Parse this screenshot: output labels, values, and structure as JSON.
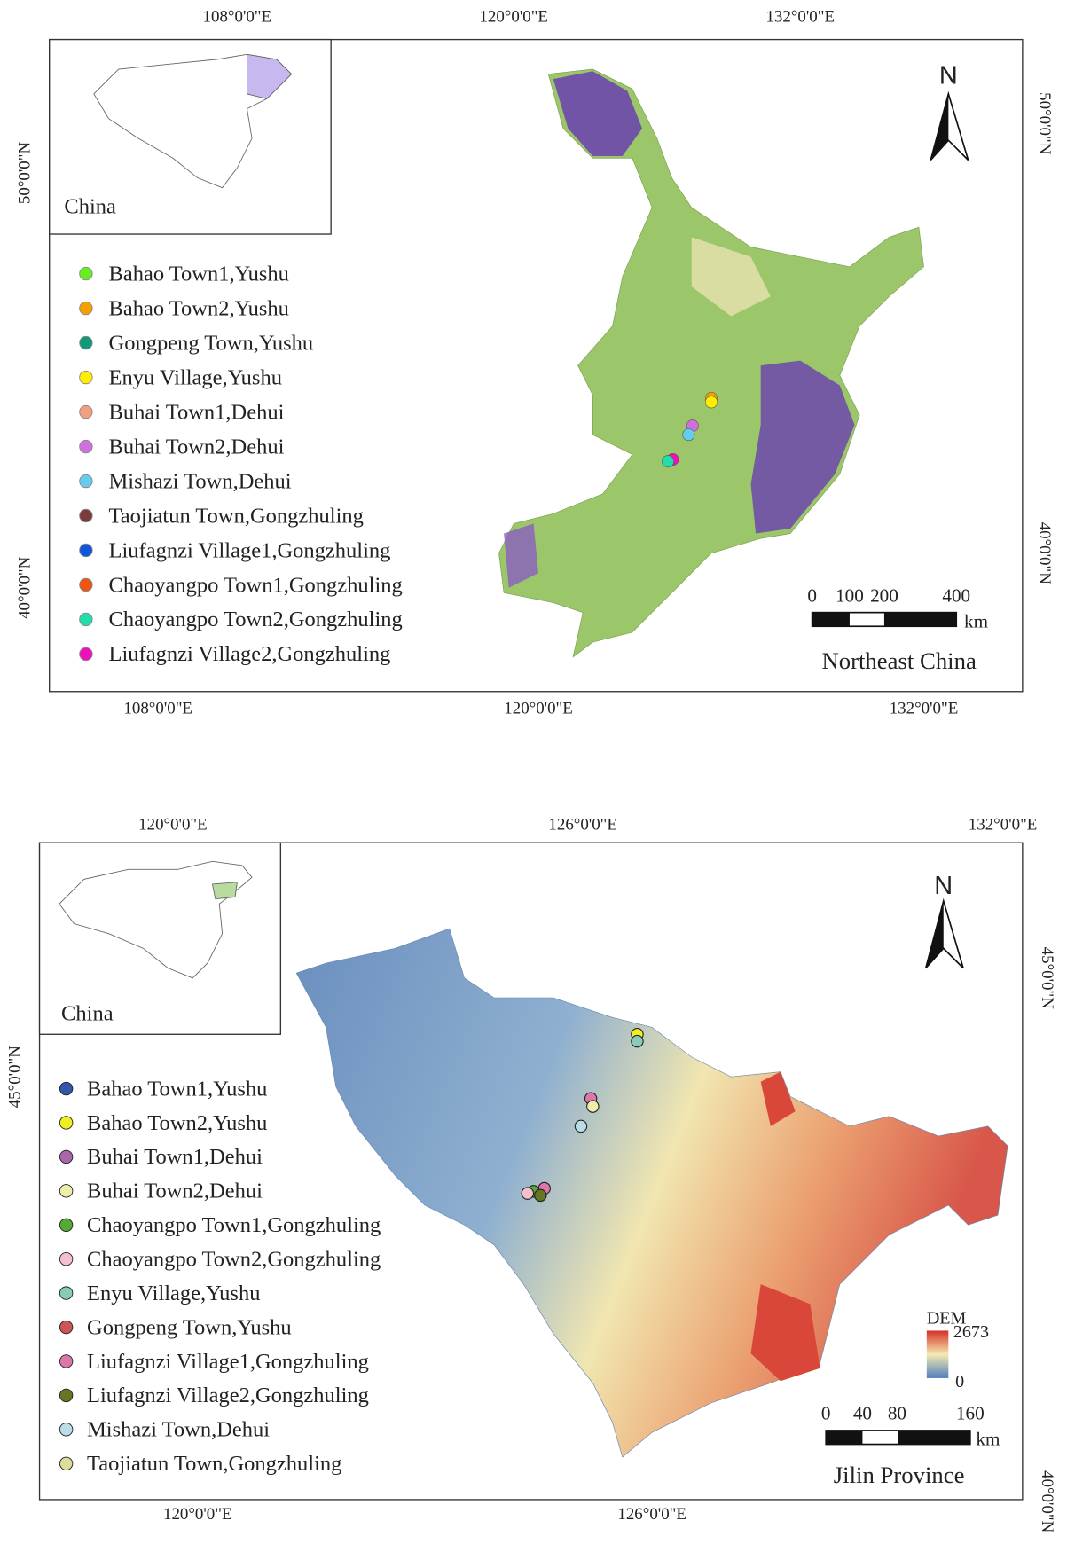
{
  "maps": [
    {
      "top_labels": [
        "108°0'0\"E",
        "120°0'0\"E",
        "132°0'0\"E"
      ],
      "bottom_labels": [
        "108°0'0\"E",
        "120°0'0\"E",
        "132°0'0\"E"
      ],
      "left_labels": [
        "50°0'0\"N",
        "40°0'0\"N"
      ],
      "right_labels": [
        "50°0'0\"N",
        "40°0'0\"N"
      ],
      "inset_label": "China",
      "legend": [
        {
          "name": "Bahao Town1,Yushu",
          "color": "#66ee22"
        },
        {
          "name": "Bahao Town2,Yushu",
          "color": "#f5a000"
        },
        {
          "name": "Gongpeng Town,Yushu",
          "color": "#119977"
        },
        {
          "name": "Enyu Village,Yushu",
          "color": "#ffee00"
        },
        {
          "name": "Buhai Town1,Dehui",
          "color": "#f0a080"
        },
        {
          "name": "Buhai Town2,Dehui",
          "color": "#d070e0"
        },
        {
          "name": "Mishazi Town,Dehui",
          "color": "#66ccee"
        },
        {
          "name": "Taojiatun Town,Gongzhuling",
          "color": "#7a3b3b"
        },
        {
          "name": "Liufagnzi Village1,Gongzhuling",
          "color": "#1155dd"
        },
        {
          "name": "Chaoyangpo Town1,Gongzhuling",
          "color": "#ee5511"
        },
        {
          "name": "Chaoyangpo Town2,Gongzhuling",
          "color": "#22ddaa"
        },
        {
          "name": "Liufagnzi Village2,Gongzhuling",
          "color": "#ee11bb"
        }
      ],
      "north": "N",
      "scale_labels": [
        "0",
        "100",
        "200",
        "400"
      ],
      "scale_unit": "km",
      "title": "Northeast China"
    },
    {
      "top_labels": [
        "120°0'0\"E",
        "126°0'0\"E",
        "132°0'0\"E"
      ],
      "bottom_labels": [
        "120°0'0\"E",
        "126°0'0\"E"
      ],
      "left_labels": [
        "45°0'0\"N"
      ],
      "right_labels": [
        "45°0'0\"N",
        "40°0'0\"N"
      ],
      "inset_label": "China",
      "legend": [
        {
          "name": "Bahao Town1,Yushu",
          "color": "#3355aa"
        },
        {
          "name": "Bahao Town2,Yushu",
          "color": "#eeee22"
        },
        {
          "name": "Buhai Town1,Dehui",
          "color": "#aa66aa"
        },
        {
          "name": "Buhai Town2,Dehui",
          "color": "#eeeeaa"
        },
        {
          "name": "Chaoyangpo Town1,Gongzhuling",
          "color": "#55aa33"
        },
        {
          "name": "Chaoyangpo Town2,Gongzhuling",
          "color": "#f4c0d0"
        },
        {
          "name": "Enyu Village,Yushu",
          "color": "#88ccb8"
        },
        {
          "name": "Gongpeng Town,Yushu",
          "color": "#cc5555"
        },
        {
          "name": "Liufagnzi Village1,Gongzhuling",
          "color": "#dd77aa"
        },
        {
          "name": "Liufagnzi Village2,Gongzhuling",
          "color": "#667722"
        },
        {
          "name": "Mishazi Town,Dehui",
          "color": "#bbdde8"
        },
        {
          "name": "Taojiatun Town,Gongzhuling",
          "color": "#dddd99"
        }
      ],
      "north": "N",
      "dem_title": "DEM",
      "dem_max": "2673",
      "dem_min": "0",
      "scale_labels": [
        "0",
        "40",
        "80",
        "160"
      ],
      "scale_unit": "km",
      "title": "Jilin Province"
    }
  ]
}
